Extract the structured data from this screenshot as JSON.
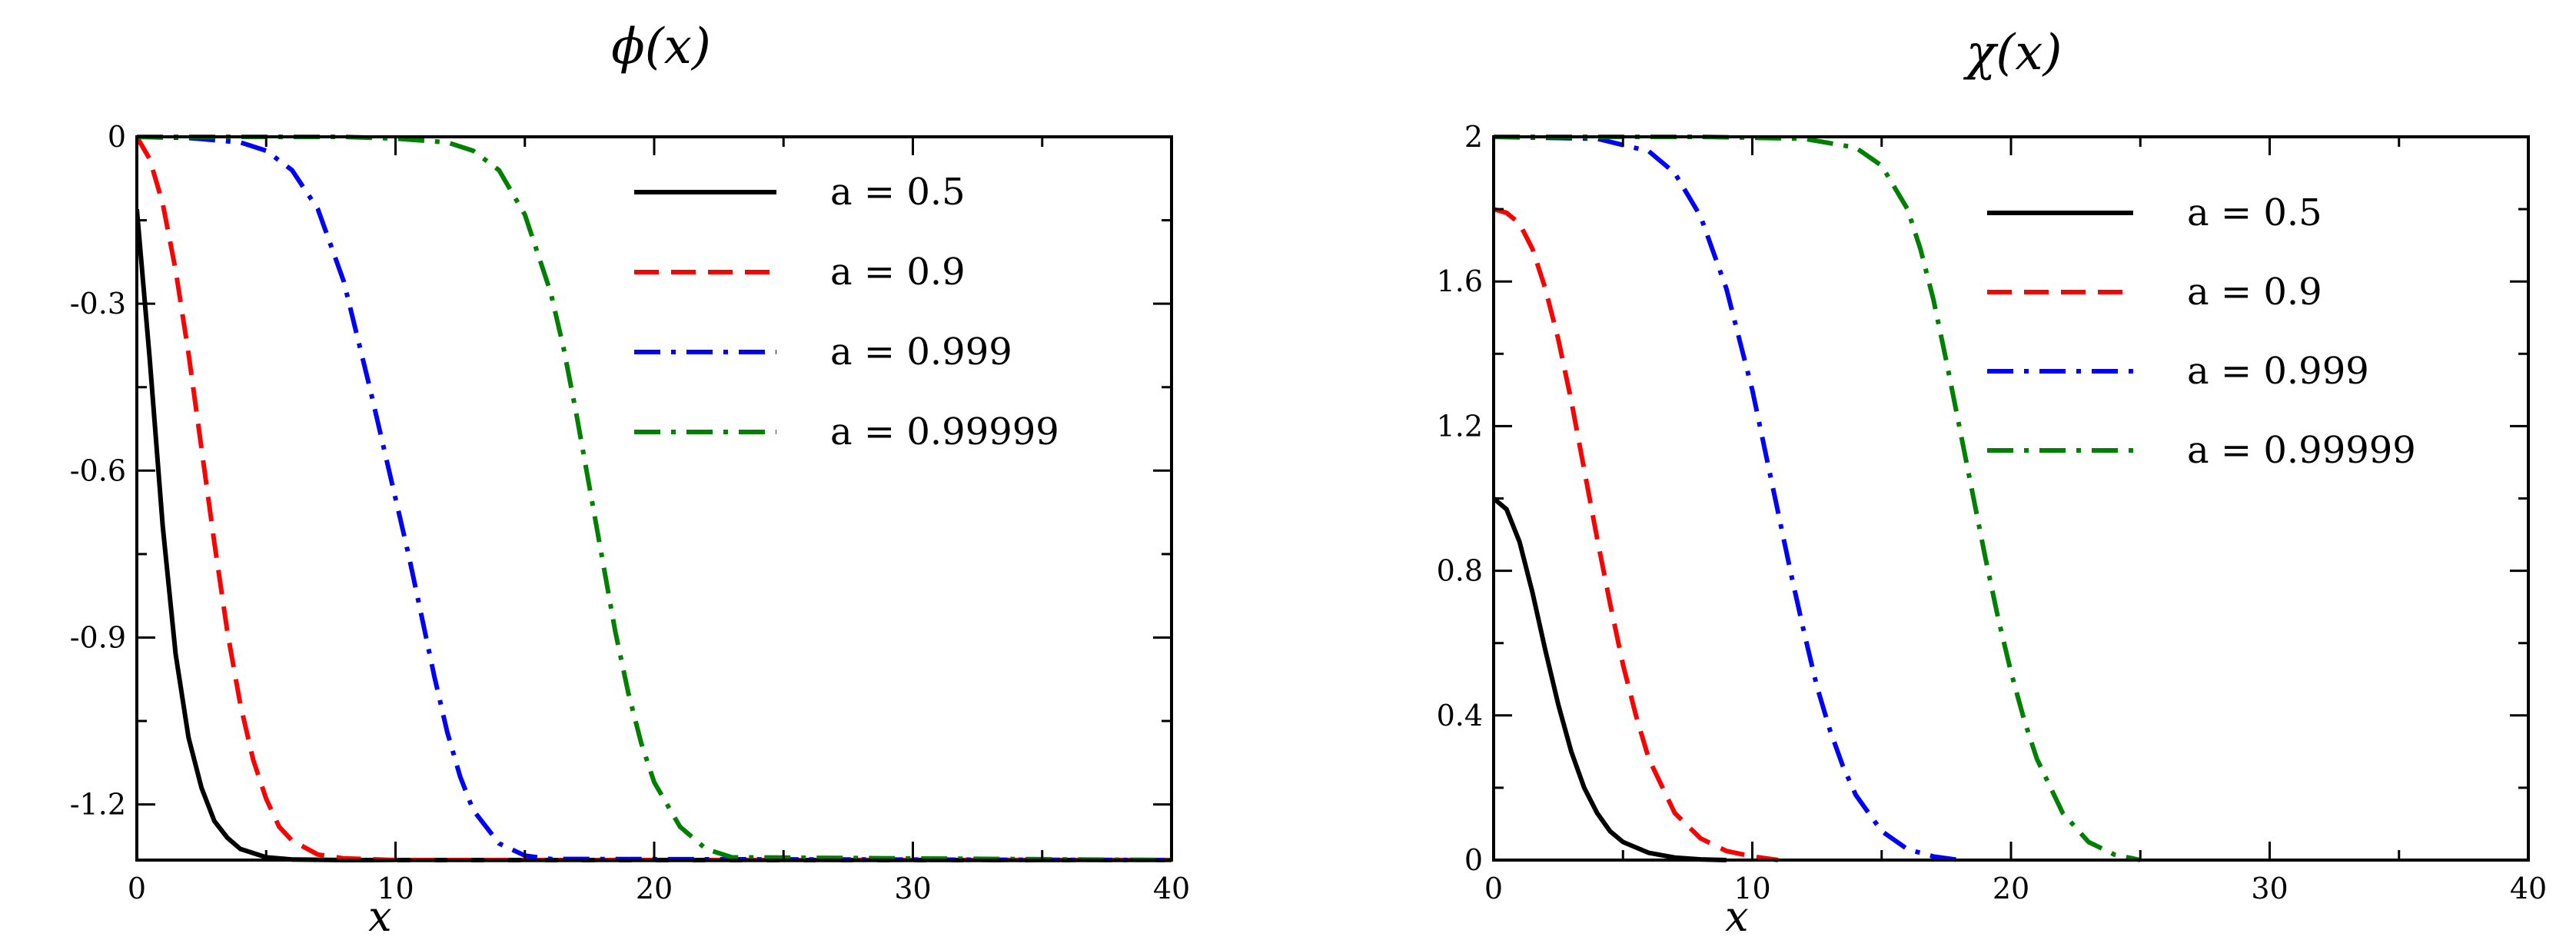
{
  "chart_data": [
    {
      "type": "line",
      "title": "ϕ(x)",
      "xlabel": "x",
      "ylabel": "",
      "xlim": [
        0,
        40
      ],
      "ylim": [
        -1.3,
        0
      ],
      "xticks": [
        0,
        10,
        20,
        30,
        40
      ],
      "xtick_labels": [
        "0",
        "10",
        "20",
        "30",
        "40"
      ],
      "yticks": [
        -1.2,
        -0.9,
        -0.6,
        -0.3,
        0
      ],
      "ytick_labels": [
        "-1.2",
        "-0.9",
        "-0.6",
        "-0.3",
        "0"
      ],
      "grid": false,
      "legend_position": "top-right",
      "series": [
        {
          "name": "a = 0.5",
          "color": "#000000",
          "style": "solid",
          "x": [
            0,
            0.5,
            1,
            1.5,
            2,
            2.5,
            3,
            3.5,
            4,
            5,
            6,
            8,
            40
          ],
          "y": [
            -0.13,
            -0.4,
            -0.7,
            -0.93,
            -1.08,
            -1.17,
            -1.23,
            -1.26,
            -1.28,
            -1.295,
            -1.299,
            -1.3,
            -1.3
          ]
        },
        {
          "name": "a = 0.9",
          "color": "#ff0000",
          "style": "dashed",
          "x": [
            0,
            0.5,
            1,
            1.5,
            2,
            2.5,
            3,
            3.5,
            4,
            4.5,
            5,
            5.5,
            6,
            7,
            8,
            10,
            40
          ],
          "y": [
            0,
            -0.04,
            -0.12,
            -0.24,
            -0.39,
            -0.56,
            -0.73,
            -0.89,
            -1.02,
            -1.12,
            -1.19,
            -1.24,
            -1.265,
            -1.29,
            -1.297,
            -1.3,
            -1.3
          ]
        },
        {
          "name": "a = 0.999",
          "color": "#0000ff",
          "style": "dashdot",
          "x": [
            0,
            2,
            4,
            5,
            6,
            7,
            8,
            9,
            10,
            10.5,
            11,
            11.5,
            12,
            12.5,
            13,
            14,
            15,
            16,
            40
          ],
          "y": [
            0,
            -0.002,
            -0.01,
            -0.025,
            -0.06,
            -0.13,
            -0.26,
            -0.45,
            -0.65,
            -0.75,
            -0.86,
            -0.97,
            -1.07,
            -1.15,
            -1.21,
            -1.27,
            -1.292,
            -1.298,
            -1.3
          ]
        },
        {
          "name": "a = 0.99999",
          "color": "#008000",
          "style": "dashdot",
          "x": [
            0,
            8,
            10,
            12,
            13,
            14,
            15,
            16,
            16.5,
            17,
            17.5,
            18,
            18.5,
            19,
            19.5,
            20,
            21,
            22,
            23,
            40
          ],
          "y": [
            0,
            0,
            -0.003,
            -0.01,
            -0.025,
            -0.06,
            -0.14,
            -0.28,
            -0.38,
            -0.5,
            -0.63,
            -0.76,
            -0.89,
            -1.0,
            -1.09,
            -1.16,
            -1.24,
            -1.28,
            -1.295,
            -1.3
          ]
        }
      ]
    },
    {
      "type": "line",
      "title": "χ(x)",
      "xlabel": "x",
      "ylabel": "",
      "xlim": [
        0,
        40
      ],
      "ylim": [
        0,
        2
      ],
      "xticks": [
        0,
        10,
        20,
        30,
        40
      ],
      "xtick_labels": [
        "0",
        "10",
        "20",
        "30",
        "40"
      ],
      "yticks": [
        0,
        0.4,
        0.8,
        1.2,
        1.6,
        2
      ],
      "ytick_labels": [
        "0",
        "0.4",
        "0.8",
        "1.2",
        "1.6",
        "2"
      ],
      "grid": false,
      "legend_position": "top-right",
      "series": [
        {
          "name": "a = 0.5",
          "color": "#000000",
          "style": "solid",
          "x": [
            0,
            0.5,
            1,
            1.5,
            2,
            2.5,
            3,
            3.5,
            4,
            4.5,
            5,
            6,
            7,
            8,
            9
          ],
          "y": [
            1.0,
            0.97,
            0.88,
            0.74,
            0.58,
            0.43,
            0.3,
            0.2,
            0.13,
            0.08,
            0.05,
            0.02,
            0.007,
            0.002,
            0
          ]
        },
        {
          "name": "a = 0.9",
          "color": "#ff0000",
          "style": "dashed",
          "x": [
            0,
            0.5,
            1,
            1.5,
            2,
            2.5,
            3,
            3.5,
            4,
            4.5,
            5,
            5.5,
            6,
            7,
            8,
            9,
            10,
            11
          ],
          "y": [
            1.8,
            1.79,
            1.76,
            1.69,
            1.58,
            1.44,
            1.27,
            1.08,
            0.89,
            0.71,
            0.54,
            0.4,
            0.28,
            0.13,
            0.06,
            0.025,
            0.01,
            0
          ]
        },
        {
          "name": "a = 0.999",
          "color": "#0000ff",
          "style": "dashdot",
          "x": [
            0,
            4,
            6,
            7,
            8,
            9,
            10,
            10.5,
            11,
            11.5,
            12,
            12.5,
            13,
            13.5,
            14,
            15,
            16,
            17,
            18
          ],
          "y": [
            2.0,
            1.995,
            1.96,
            1.9,
            1.78,
            1.58,
            1.3,
            1.13,
            0.96,
            0.79,
            0.63,
            0.48,
            0.36,
            0.26,
            0.18,
            0.08,
            0.03,
            0.01,
            0
          ]
        },
        {
          "name": "a = 0.99999",
          "color": "#008000",
          "style": "dashdot",
          "x": [
            0,
            8,
            12,
            14,
            15,
            16,
            16.5,
            17,
            17.5,
            18,
            18.5,
            19,
            19.5,
            20,
            20.5,
            21,
            22,
            23,
            24,
            25
          ],
          "y": [
            2.0,
            2.0,
            1.995,
            1.97,
            1.92,
            1.8,
            1.69,
            1.55,
            1.38,
            1.2,
            1.02,
            0.84,
            0.67,
            0.52,
            0.39,
            0.28,
            0.13,
            0.05,
            0.015,
            0
          ]
        }
      ]
    }
  ]
}
